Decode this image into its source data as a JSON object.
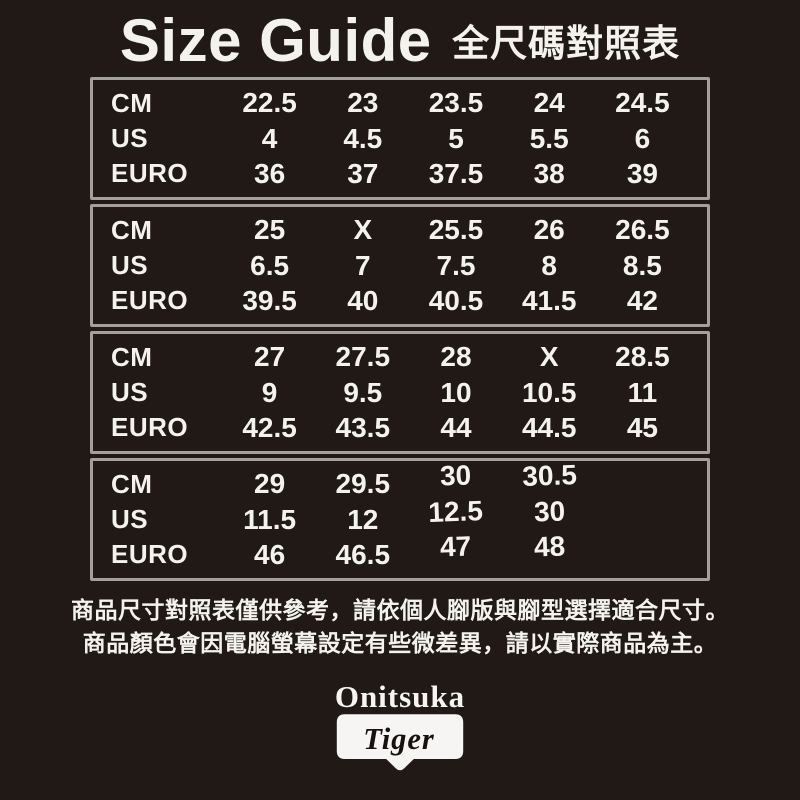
{
  "page": {
    "title_en": "Size Guide",
    "title_zh": "全尺碼對照表"
  },
  "chart_data": {
    "type": "table",
    "title": "Size Guide 全尺碼對照表",
    "row_labels": [
      "CM",
      "US",
      "EURO"
    ],
    "blocks": [
      {
        "rows": [
          [
            "22.5",
            "23",
            "23.5",
            "24",
            "24.5"
          ],
          [
            "4",
            "4.5",
            "5",
            "5.5",
            "6"
          ],
          [
            "36",
            "37",
            "37.5",
            "38",
            "39"
          ]
        ]
      },
      {
        "rows": [
          [
            "25",
            "X",
            "25.5",
            "26",
            "26.5"
          ],
          [
            "6.5",
            "7",
            "7.5",
            "8",
            "8.5"
          ],
          [
            "39.5",
            "40",
            "40.5",
            "41.5",
            "42"
          ]
        ]
      },
      {
        "rows": [
          [
            "27",
            "27.5",
            "28",
            "X",
            "28.5"
          ],
          [
            "9",
            "9.5",
            "10",
            "10.5",
            "11"
          ],
          [
            "42.5",
            "43.5",
            "44",
            "44.5",
            "45"
          ]
        ]
      },
      {
        "rows": [
          [
            "29",
            "29.5",
            "30",
            "30.5",
            ""
          ],
          [
            "11.5",
            "12",
            "12.5",
            "30",
            ""
          ],
          [
            "46",
            "46.5",
            "47",
            "48",
            ""
          ]
        ]
      }
    ]
  },
  "footer": {
    "line1": "商品尺寸對照表僅供參考，請依個人腳版與腳型選擇適合尺寸。",
    "line2": "商品顏色會因電腦螢幕設定有些微差異，請以實際商品為主。"
  },
  "logo": {
    "wordmark": "Onitsuka",
    "shield_text": "Tiger"
  },
  "colors": {
    "background": "#201916",
    "text": "#f4f2ef",
    "box_border": "#a39f9b",
    "logo_shield_fill": "#f6f5f3",
    "logo_shield_text": "#17120f"
  }
}
